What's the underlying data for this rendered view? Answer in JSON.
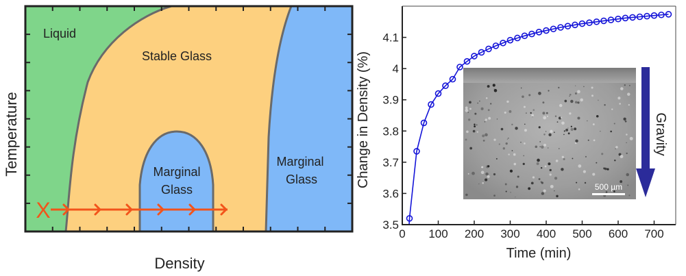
{
  "colors": {
    "liquid": "#7fd58a",
    "stable": "#fdd07f",
    "marginal": "#7fb8f8",
    "boundary": "#6a6a6a",
    "path": "#f2541b",
    "series": "#1414d8",
    "gravity_arrow": "#2b2b9a"
  },
  "phase_diagram": {
    "type": "phase-diagram",
    "xlabel": "Density",
    "ylabel": "Temperature",
    "regions": {
      "liquid": "Liquid",
      "stable": "Stable Glass",
      "marginal_inner": [
        "Marginal",
        "Glass"
      ],
      "marginal_right": [
        "Marginal",
        "Glass"
      ]
    },
    "start_marker": "X",
    "path_arrow_count": 6
  },
  "chart_data": {
    "type": "line",
    "xlabel": "Time (min)",
    "ylabel": "Change in Density (%)",
    "xlim": [
      0,
      760
    ],
    "ylim": [
      3.5,
      4.2
    ],
    "xticks": [
      "0",
      "100",
      "200",
      "300",
      "400",
      "500",
      "600",
      "700"
    ],
    "yticks": [
      "3.5",
      "3.6",
      "3.7",
      "3.8",
      "3.9",
      "4",
      "4.1"
    ],
    "marker": "circle",
    "series": [
      {
        "x": [
          20,
          40,
          60,
          80,
          100,
          120,
          140,
          160,
          180,
          200,
          220,
          240,
          260,
          280,
          300,
          320,
          340,
          360,
          380,
          400,
          420,
          440,
          460,
          480,
          500,
          520,
          540,
          560,
          580,
          600,
          620,
          640,
          660,
          680,
          700,
          720,
          740
        ],
        "values": [
          3.52,
          3.735,
          3.826,
          3.885,
          3.92,
          3.945,
          3.966,
          4.005,
          4.023,
          4.04,
          4.052,
          4.063,
          4.073,
          4.082,
          4.091,
          4.098,
          4.105,
          4.111,
          4.117,
          4.122,
          4.127,
          4.132,
          4.136,
          4.14,
          4.144,
          4.147,
          4.15,
          4.153,
          4.156,
          4.159,
          4.162,
          4.164,
          4.166,
          4.168,
          4.17,
          4.172,
          4.174
        ]
      }
    ]
  },
  "inset": {
    "scalebar_label": "500 µm",
    "gravity_label": "Gravity"
  }
}
